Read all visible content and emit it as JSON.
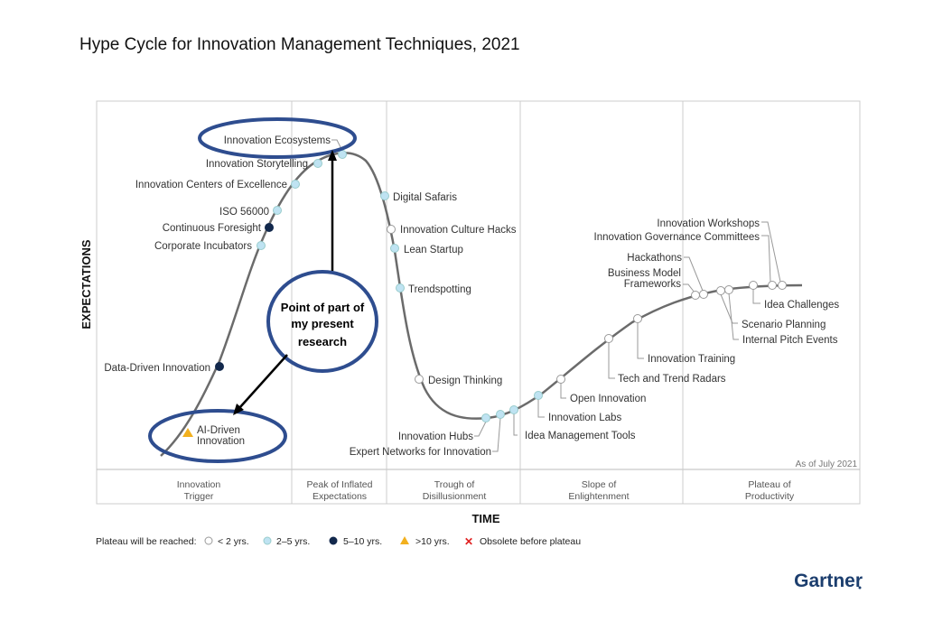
{
  "title": "Hype Cycle for Innovation Management Techniques, 2021",
  "y_axis": "EXPECTATIONS",
  "x_axis": "TIME",
  "as_of": "As of July 2021",
  "phases": [
    [
      "Innovation",
      "Trigger"
    ],
    [
      "Peak of Inflated",
      "Expectations"
    ],
    [
      "Trough of",
      "Disillusionment"
    ],
    [
      "Slope of",
      "Enlightenment"
    ],
    [
      "Plateau of",
      "Productivity"
    ]
  ],
  "legend": {
    "title": "Plateau will be reached:",
    "items": [
      "< 2 yrs.",
      "2–5 yrs.",
      "5–10 yrs.",
      ">10 yrs.",
      "Obsolete before plateau"
    ]
  },
  "colors": {
    "white": "#ffffff",
    "light": "#bfe3f2",
    "dark": "#12284c",
    "triangle": "#f2b01e",
    "obsolete": "#e02020",
    "annotation": "#2e4d8f"
  },
  "technologies": [
    {
      "name": [
        "AI-Driven",
        "Innovation"
      ],
      "plateau": ">10 yrs."
    },
    {
      "name": "Data-Driven Innovation",
      "plateau": "5–10 yrs."
    },
    {
      "name": "Corporate Incubators",
      "plateau": "2–5 yrs."
    },
    {
      "name": "Continuous Foresight",
      "plateau": "5–10 yrs."
    },
    {
      "name": "ISO 56000",
      "plateau": "2–5 yrs."
    },
    {
      "name": "Innovation Centers of Excellence",
      "plateau": "2–5 yrs."
    },
    {
      "name": "Innovation Storytelling",
      "plateau": "2–5 yrs."
    },
    {
      "name": "Innovation Ecosystems",
      "plateau": "2–5 yrs."
    },
    {
      "name": "Digital Safaris",
      "plateau": "2–5 yrs."
    },
    {
      "name": "Innovation Culture Hacks",
      "plateau": "< 2 yrs."
    },
    {
      "name": "Lean Startup",
      "plateau": "2–5 yrs."
    },
    {
      "name": "Trendspotting",
      "plateau": "2–5 yrs."
    },
    {
      "name": "Design Thinking",
      "plateau": "< 2 yrs."
    },
    {
      "name": "Innovation Hubs",
      "plateau": "2–5 yrs."
    },
    {
      "name": "Expert Networks for Innovation",
      "plateau": "2–5 yrs."
    },
    {
      "name": "Idea Management Tools",
      "plateau": "2–5 yrs."
    },
    {
      "name": "Innovation Labs",
      "plateau": "2–5 yrs."
    },
    {
      "name": "Open Innovation",
      "plateau": "< 2 yrs."
    },
    {
      "name": "Tech and Trend Radars",
      "plateau": "< 2 yrs."
    },
    {
      "name": "Innovation Training",
      "plateau": "< 2 yrs."
    },
    {
      "name": [
        "Business Model",
        "Frameworks"
      ],
      "plateau": "< 2 yrs."
    },
    {
      "name": "Hackathons",
      "plateau": "< 2 yrs."
    },
    {
      "name": "Scenario Planning",
      "plateau": "< 2 yrs."
    },
    {
      "name": "Internal Pitch Events",
      "plateau": "< 2 yrs."
    },
    {
      "name": "Idea Challenges",
      "plateau": "< 2 yrs."
    },
    {
      "name": "Innovation Governance Committees",
      "plateau": "< 2 yrs."
    },
    {
      "name": "Innovation Workshops",
      "plateau": "< 2 yrs."
    }
  ],
  "annotation": [
    "Point of part of",
    "my present",
    "research"
  ],
  "logo": "Gartner"
}
